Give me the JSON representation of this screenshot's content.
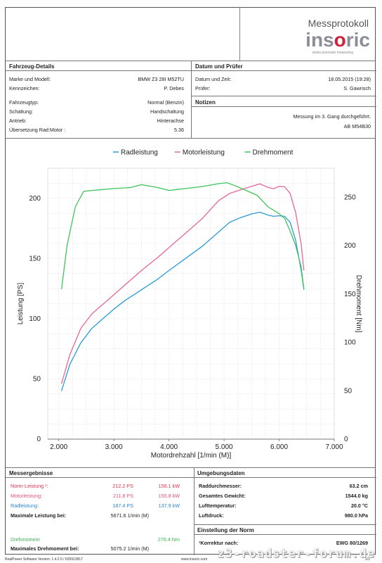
{
  "logo": {
    "title": "Messprotokoll",
    "brand_a": "ins",
    "brand_o": "o",
    "brand_b": "ric",
    "tagline": "swiss precision measuring"
  },
  "vehicle": {
    "heading": "Fahrzeug-Details",
    "rows": [
      {
        "label": "Marke und Modell:",
        "value": "BMW Z3 28I M52TU"
      },
      {
        "label": "Kennzeichen:",
        "value": "P. Debes"
      },
      {
        "label": "Fahrzeugtyp:",
        "value": "Normal (Benzin)"
      },
      {
        "label": "Schaltung:",
        "value": "Handschaltung"
      },
      {
        "label": "Antrieb:",
        "value": "Hinterachse"
      },
      {
        "label": "Übersetzung Rad:Motor :",
        "value": "5.36"
      }
    ]
  },
  "tester": {
    "heading": "Datum und Prüfer",
    "rows": [
      {
        "label": "Datum und Zeit:",
        "value": "18.05.2015 (19:28)"
      },
      {
        "label": "Prüfer:",
        "value": "S. Gawrisch"
      }
    ]
  },
  "notes": {
    "heading": "Notizen",
    "line1": "Messung im 3. Gang durchgeführt.",
    "line2": "AB M54B30"
  },
  "chart_data": {
    "type": "line",
    "xlabel": "Motordrehzahl [1/min (M)]",
    "ylabel": "Leistung [PS]",
    "y2label": "Drehmoment [Nm]",
    "xlim": [
      1.8,
      7.0
    ],
    "ylim": [
      0,
      225
    ],
    "y2lim": [
      0,
      280
    ],
    "x_ticks": [
      "2.000",
      "3.000",
      "4.000",
      "5.000",
      "6.000",
      "7.000"
    ],
    "y_ticks": [
      0,
      50,
      100,
      150,
      200
    ],
    "y2_ticks": [
      0,
      50,
      100,
      150,
      200,
      250
    ],
    "grid": true,
    "legend": "top-center",
    "series": [
      {
        "name": "Radleistung",
        "color": "#2a9ad8",
        "axis": "left",
        "x": [
          2.05,
          2.2,
          2.4,
          2.6,
          2.8,
          3.0,
          3.2,
          3.5,
          3.8,
          4.0,
          4.3,
          4.6,
          4.9,
          5.1,
          5.3,
          5.5,
          5.65,
          5.8,
          5.9,
          6.0,
          6.1,
          6.2,
          6.3,
          6.4,
          6.45
        ],
        "y": [
          40,
          62,
          80,
          92,
          100,
          108,
          115,
          124,
          133,
          140,
          150,
          160,
          172,
          180,
          184,
          187,
          188.5,
          186,
          185,
          185.5,
          185,
          180,
          165,
          140,
          124
        ]
      },
      {
        "name": "Motorleistung",
        "color": "#e6669a",
        "axis": "left",
        "x": [
          2.05,
          2.2,
          2.4,
          2.6,
          2.8,
          3.0,
          3.2,
          3.5,
          3.8,
          4.0,
          4.3,
          4.6,
          4.9,
          5.1,
          5.3,
          5.5,
          5.65,
          5.8,
          5.9,
          6.0,
          6.1,
          6.2,
          6.3,
          6.4,
          6.45
        ],
        "y": [
          46,
          70,
          92,
          104,
          112,
          120,
          128,
          140,
          151,
          159,
          171,
          183,
          198,
          204,
          207,
          210,
          212,
          209,
          208,
          210,
          209.5,
          204,
          188,
          162,
          140
        ]
      },
      {
        "name": "Drehmoment",
        "color": "#3fc45a",
        "axis": "right",
        "x": [
          2.05,
          2.15,
          2.3,
          2.45,
          2.6,
          2.8,
          3.0,
          3.3,
          3.5,
          3.8,
          4.0,
          4.3,
          4.6,
          4.9,
          5.05,
          5.2,
          5.4,
          5.6,
          5.8,
          6.0,
          6.1,
          6.2,
          6.3,
          6.4,
          6.45
        ],
        "y": [
          155,
          200,
          240,
          256,
          257,
          258,
          259,
          260,
          263,
          260,
          257,
          259,
          261,
          264,
          265,
          262,
          257,
          252,
          240,
          233,
          228,
          215,
          200,
          178,
          155
        ]
      }
    ]
  },
  "results": {
    "heading": "Messergebnisse",
    "norm": {
      "label": "Norm-Leistung ¹:",
      "ps": "212.2 PS",
      "kw": "156.1 kW"
    },
    "motor": {
      "label": "Motorleistung:",
      "ps": "211.8 PS",
      "kw": "155.8 kW"
    },
    "rad": {
      "label": "Radleistung:",
      "ps": "187.4 PS",
      "kw": "137.9 kW"
    },
    "max_power": {
      "label": "Maximale Leistung bei:",
      "value": "5671.6 1/min (M)"
    },
    "torque": {
      "label": "Drehmoment",
      "value": "276.4 Nm"
    },
    "max_torque": {
      "label": "Maximales Drehmoment bei:",
      "value": "5075.2 1/min (M)"
    }
  },
  "environment": {
    "heading": "Umgebungsdaten",
    "rows": [
      {
        "label": "Raddurchmesser:",
        "value": "63.2 cm"
      },
      {
        "label": "Gesamtes Gewicht:",
        "value": "1544.0 kg"
      },
      {
        "label": "Lufttemperatur:",
        "value": "20.0 °C"
      },
      {
        "label": "Luftdruck:",
        "value": "980.0 hPa"
      }
    ]
  },
  "norm": {
    "heading": "Einstellung der Norm",
    "label": "¹Korrektur nach:",
    "value": "EWG 80/1269"
  },
  "footer": {
    "software": "RealPower Software Version: 1.4.2.0 / 635913817",
    "url": "www.insoric.com",
    "page": "1/1"
  },
  "watermark": "z3-roadster-forum.de"
}
